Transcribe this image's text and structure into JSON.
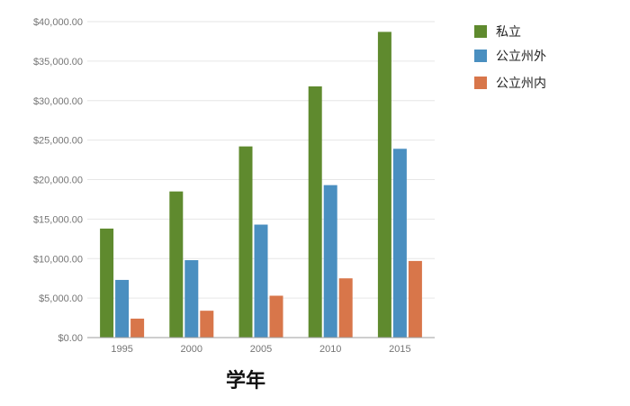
{
  "chart_data": {
    "type": "bar",
    "xlabel": "学年",
    "ylabel": "",
    "categories": [
      "1995",
      "2000",
      "2005",
      "2010",
      "2015"
    ],
    "ylim": [
      0,
      40000
    ],
    "y_ticks": [
      "$0.00",
      "$5,000.00",
      "$10,000.00",
      "$15,000.00",
      "$20,000.00",
      "$25,000.00",
      "$30,000.00",
      "$35,000.00",
      "$40,000.00"
    ],
    "grid": true,
    "legend_position": "top-right",
    "series": [
      {
        "name": "私立",
        "color": "#5f8a2e",
        "values": [
          13800,
          18500,
          24200,
          31800,
          38700
        ]
      },
      {
        "name": "公立州外",
        "color": "#4a8fc0",
        "values": [
          7300,
          9800,
          14300,
          19300,
          23900
        ]
      },
      {
        "name": "公立州内",
        "color": "#d8764a",
        "values": [
          2400,
          3400,
          5300,
          7500,
          9700
        ]
      }
    ]
  }
}
